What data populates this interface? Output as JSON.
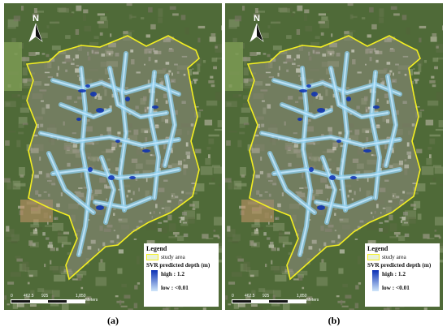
{
  "panels": [
    {
      "id": "a",
      "caption": "(a)",
      "north_label": "N",
      "legend": {
        "title": "Legend",
        "study_area_label": "study area",
        "depth_title": "SVR predicted depth (m)",
        "high_label": "high : 1.2",
        "low_label": "low : <0.01"
      },
      "scale": {
        "ticks": [
          "0",
          "462.5",
          "925",
          "1,850"
        ],
        "unit": "Meters"
      }
    },
    {
      "id": "b",
      "caption": "(b)",
      "north_label": "N",
      "legend": {
        "title": "Legend",
        "study_area_label": "study area",
        "depth_title": "SVR predicted depth (m)",
        "high_label": "high : 1.2",
        "low_label": "low : <0.01"
      },
      "scale": {
        "ticks": [
          "0",
          "462.5",
          "925",
          "1,850"
        ],
        "unit": "Meters"
      }
    }
  ],
  "colors": {
    "study_area_outline": "#f4ef22",
    "depth_high": "#0b2fb5",
    "depth_low": "#cfe6fa",
    "flood_light": "#8fd0f0",
    "terrain_green": "#4f6a38",
    "urban_gray": "#8f8c80"
  },
  "icons": {
    "north_arrow": "north-arrow-icon"
  }
}
